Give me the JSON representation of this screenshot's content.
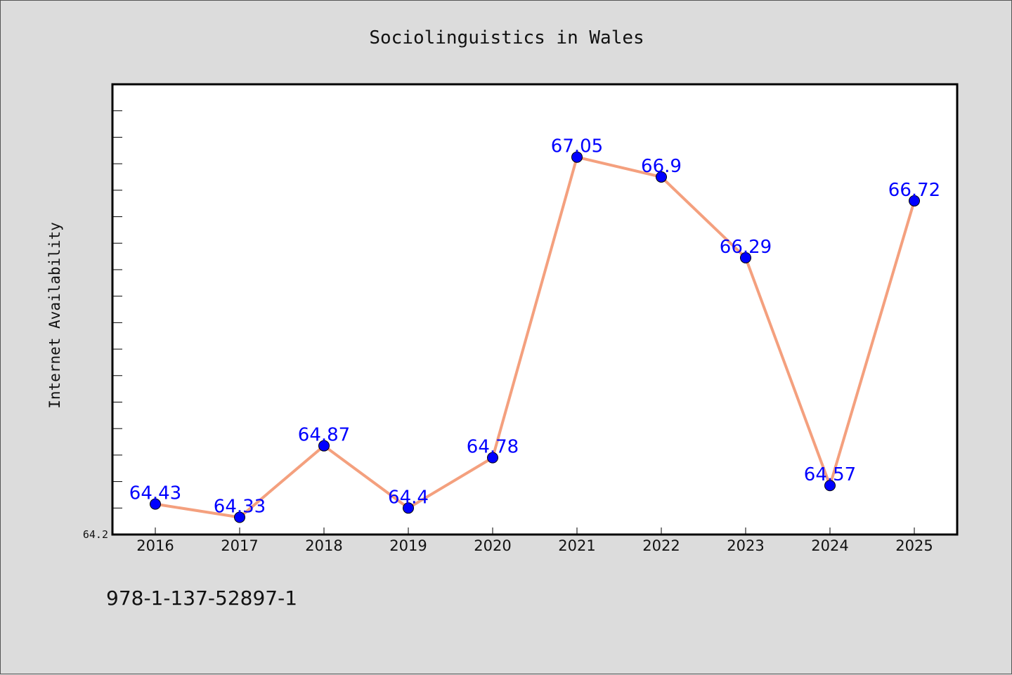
{
  "footer": {
    "text": "978-1-137-52897-1"
  },
  "colors": {
    "background": "#dcdcdc",
    "plot_background": "#ffffff",
    "line": "#f4a07e",
    "marker": "#0000ff",
    "data_label": "#0000ff"
  },
  "chart_data": {
    "type": "line",
    "title": "Sociolinguistics in Wales",
    "xlabel": "",
    "ylabel": "Internet Availability",
    "categories": [
      "2016",
      "2017",
      "2018",
      "2019",
      "2020",
      "2021",
      "2022",
      "2023",
      "2024",
      "2025"
    ],
    "series": [
      {
        "values": [
          64.43,
          64.33,
          64.87,
          64.4,
          64.78,
          67.05,
          66.9,
          66.29,
          64.57,
          66.72
        ],
        "labels": [
          "64.43",
          "64.33",
          "64.87",
          "64.4",
          "64.78",
          "67.05",
          "66.9",
          "66.29",
          "64.57",
          "66.72"
        ]
      }
    ],
    "ylim": [
      64.2,
      67.6
    ],
    "ytick_labels": [
      "64.2"
    ],
    "minor_tick_step": 0.2,
    "grid": false,
    "legend": "none"
  }
}
